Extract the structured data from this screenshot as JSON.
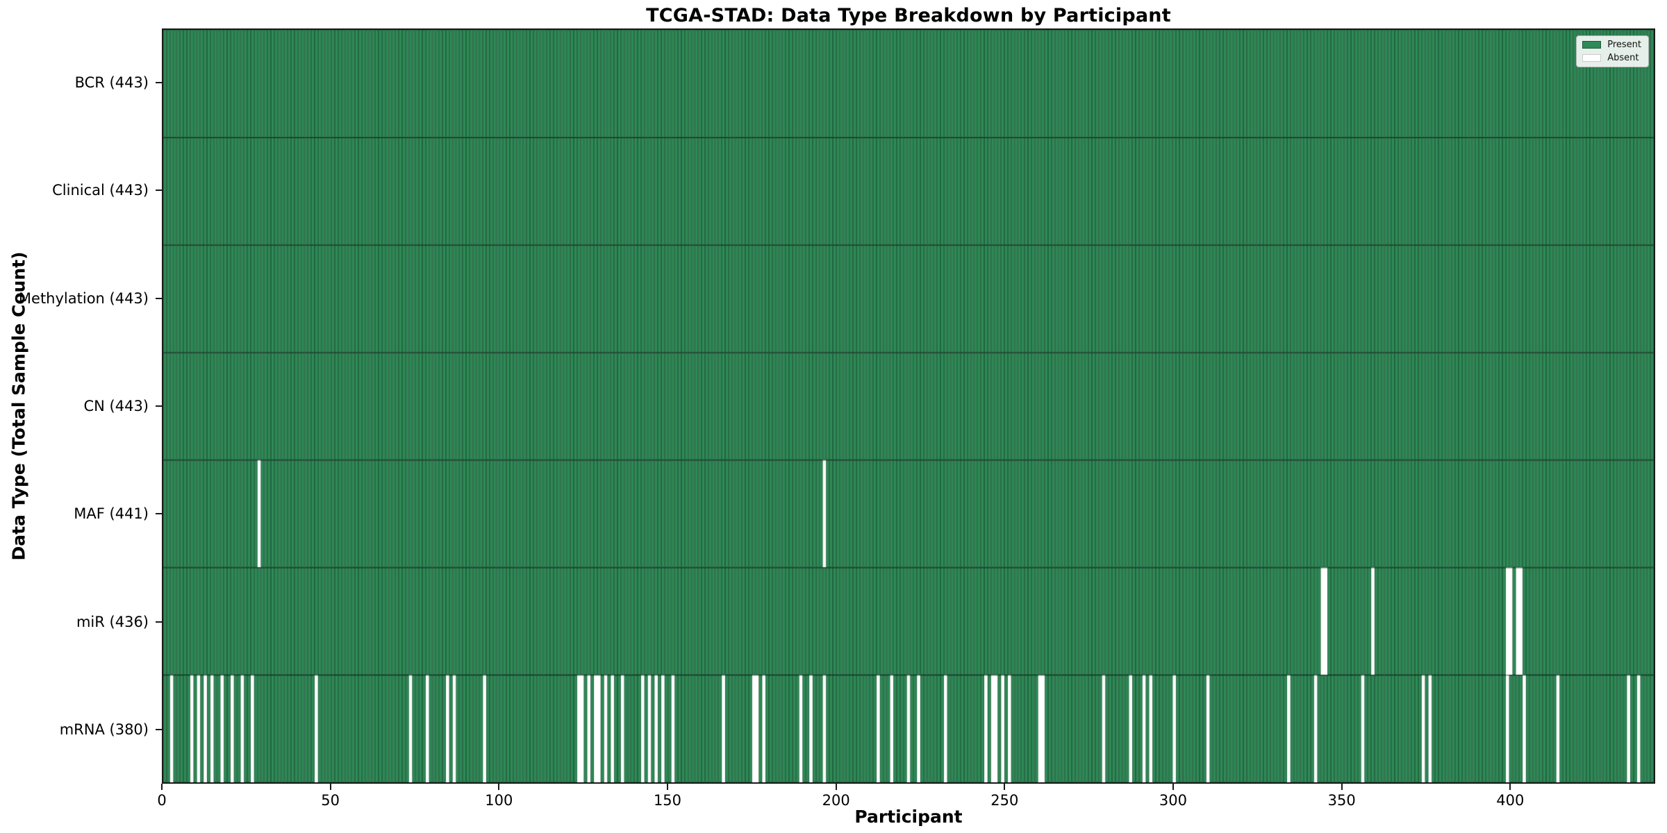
{
  "chart_data": {
    "type": "heatmap",
    "title": "TCGA-STAD: Data Type Breakdown by Participant",
    "xlabel": "Participant",
    "ylabel": "Data Type (Total Sample Count)",
    "n_participants": 443,
    "x_range": [
      0,
      443
    ],
    "grid": false,
    "legend": {
      "position": "upper right",
      "present_label": "Present",
      "absent_label": "Absent"
    },
    "colors": {
      "present": "#2e8b57",
      "absent": "#ffffff",
      "cell_edge": "rgba(0,0,0,0.35)",
      "row_line": "rgba(0,0,0,0.55)",
      "spine": "#1a1a1a"
    },
    "x_ticks": [
      {
        "value": 0,
        "label": "0"
      },
      {
        "value": 50,
        "label": "50"
      },
      {
        "value": 100,
        "label": "100"
      },
      {
        "value": 150,
        "label": "150"
      },
      {
        "value": 200,
        "label": "200"
      },
      {
        "value": 250,
        "label": "250"
      },
      {
        "value": 300,
        "label": "300"
      },
      {
        "value": 350,
        "label": "350"
      },
      {
        "value": 400,
        "label": "400"
      }
    ],
    "rows": [
      {
        "name": "BCR",
        "label": "BCR (443)",
        "present_count": 443,
        "absent_participants": []
      },
      {
        "name": "Clinical",
        "label": "Clinical (443)",
        "present_count": 443,
        "absent_participants": []
      },
      {
        "name": "Methylation",
        "label": "Methylation (443)",
        "present_count": 443,
        "absent_participants": []
      },
      {
        "name": "CN",
        "label": "CN (443)",
        "present_count": 443,
        "absent_participants": []
      },
      {
        "name": "MAF",
        "label": "MAF (441)",
        "present_count": 441,
        "absent_participants": [
          28,
          196
        ]
      },
      {
        "name": "miR",
        "label": "miR (436)",
        "present_count": 436,
        "absent_participants": [
          344,
          345,
          359,
          399,
          400,
          402,
          403
        ]
      },
      {
        "name": "mRNA",
        "label": "mRNA (380)",
        "present_count": 380,
        "absent_participants": [
          2,
          8,
          10,
          12,
          14,
          17,
          20,
          23,
          26,
          45,
          73,
          78,
          84,
          86,
          95,
          123,
          124,
          126,
          128,
          129,
          131,
          133,
          136,
          142,
          144,
          146,
          148,
          151,
          166,
          175,
          176,
          178,
          189,
          192,
          196,
          212,
          216,
          221,
          224,
          232,
          244,
          246,
          247,
          249,
          251,
          260,
          261,
          279,
          287,
          291,
          293,
          300,
          310,
          334,
          342,
          356,
          374,
          376,
          399,
          404,
          414,
          435,
          438
        ]
      }
    ]
  }
}
